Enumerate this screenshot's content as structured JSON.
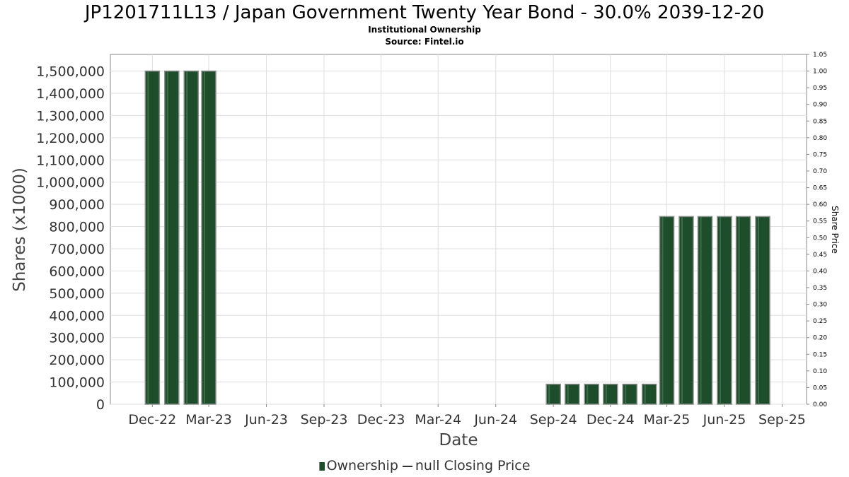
{
  "header": {
    "title": "JP1201711L13 / Japan Government Twenty Year Bond - 30.0% 2039-12-20",
    "subtitle_1": "Institutional Ownership",
    "subtitle_2": "Source: Fintel.io"
  },
  "legend": {
    "ownership_label": "Ownership",
    "price_label": "null Closing Price"
  },
  "colors": {
    "bar": "#1e4d2b",
    "bar_edge": "#8a8f8b",
    "grid": "#dddddd",
    "plot_border": "#888888"
  },
  "chart_data": {
    "type": "bar",
    "xlabel": "Date",
    "ylabel": "Shares (x1000)",
    "y2label": "Share Price",
    "ylim": [
      0,
      1575000
    ],
    "y_ticks": [
      0,
      100000,
      200000,
      300000,
      400000,
      500000,
      600000,
      700000,
      800000,
      900000,
      1000000,
      1100000,
      1200000,
      1300000,
      1400000,
      1500000
    ],
    "y_tick_labels": [
      "0",
      "100,000",
      "200,000",
      "300,000",
      "400,000",
      "500,000",
      "600,000",
      "700,000",
      "800,000",
      "900,000",
      "1,000,000",
      "1,100,000",
      "1,200,000",
      "1,300,000",
      "1,400,000",
      "1,500,000"
    ],
    "y2lim": [
      0,
      1.05
    ],
    "y2_tick_labels": [
      "0.00",
      "0.05",
      "0.10",
      "0.15",
      "0.20",
      "0.25",
      "0.30",
      "0.35",
      "0.40",
      "0.45",
      "0.50",
      "0.55",
      "0.60",
      "0.65",
      "0.70",
      "0.75",
      "0.80",
      "0.85",
      "0.90",
      "0.95",
      "1.00",
      "1.05"
    ],
    "x_tick_labels": [
      "Dec-22",
      "Mar-23",
      "Jun-23",
      "Sep-23",
      "Dec-23",
      "Mar-24",
      "Jun-24",
      "Sep-24",
      "Dec-24",
      "Mar-25",
      "Jun-25",
      "Sep-25"
    ],
    "x_range": [
      "2022-09-25",
      "2025-10-10"
    ],
    "x_ticks": [
      "2022-12-01",
      "2023-03-01",
      "2023-06-01",
      "2023-09-01",
      "2023-12-01",
      "2024-03-01",
      "2024-06-01",
      "2024-09-01",
      "2024-12-01",
      "2025-03-01",
      "2025-06-01",
      "2025-09-01"
    ],
    "grid": true,
    "legend_position": "bottom",
    "series": [
      {
        "name": "Ownership",
        "x": [
          "2022-12-01",
          "2023-01-01",
          "2023-02-01",
          "2023-03-01",
          "2024-09-01",
          "2024-10-01",
          "2024-11-01",
          "2024-12-01",
          "2025-01-01",
          "2025-02-01",
          "2025-03-01",
          "2025-04-01",
          "2025-05-01",
          "2025-06-01",
          "2025-07-01",
          "2025-08-01"
        ],
        "values": [
          1500000,
          1500000,
          1500000,
          1500000,
          90000,
          90000,
          90000,
          90000,
          90000,
          90000,
          845000,
          845000,
          845000,
          845000,
          845000,
          845000
        ]
      }
    ]
  }
}
